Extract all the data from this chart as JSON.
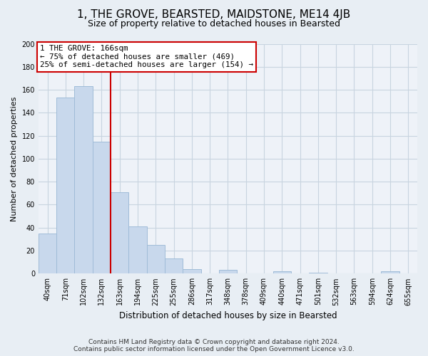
{
  "title": "1, THE GROVE, BEARSTED, MAIDSTONE, ME14 4JB",
  "subtitle": "Size of property relative to detached houses in Bearsted",
  "xlabel": "Distribution of detached houses by size in Bearsted",
  "ylabel": "Number of detached properties",
  "bar_color": "#c8d8ec",
  "bar_edge_color": "#a0bcd8",
  "bins": [
    "40sqm",
    "71sqm",
    "102sqm",
    "132sqm",
    "163sqm",
    "194sqm",
    "225sqm",
    "255sqm",
    "286sqm",
    "317sqm",
    "348sqm",
    "378sqm",
    "409sqm",
    "440sqm",
    "471sqm",
    "501sqm",
    "532sqm",
    "563sqm",
    "594sqm",
    "624sqm",
    "655sqm"
  ],
  "values": [
    35,
    153,
    163,
    115,
    71,
    41,
    25,
    13,
    4,
    0,
    3,
    0,
    0,
    2,
    0,
    1,
    0,
    0,
    0,
    2,
    0
  ],
  "ylim": [
    0,
    200
  ],
  "yticks": [
    0,
    20,
    40,
    60,
    80,
    100,
    120,
    140,
    160,
    180,
    200
  ],
  "red_line_x": 3.5,
  "annotation_title": "1 THE GROVE: 166sqm",
  "annotation_line1": "← 75% of detached houses are smaller (469)",
  "annotation_line2": "25% of semi-detached houses are larger (154) →",
  "footer1": "Contains HM Land Registry data © Crown copyright and database right 2024.",
  "footer2": "Contains public sector information licensed under the Open Government Licence v3.0.",
  "bg_color": "#e8eef4",
  "plot_bg_color": "#eef2f8",
  "grid_color": "#c8d4e0"
}
